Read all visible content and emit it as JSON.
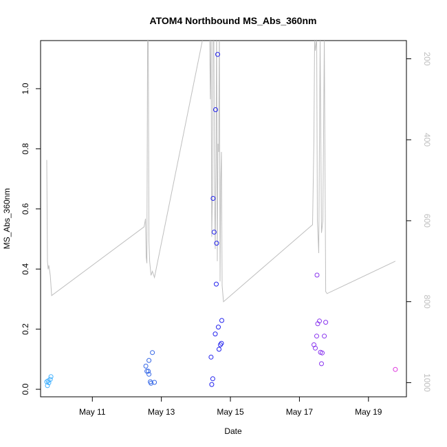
{
  "chart_data": {
    "type": "scatter",
    "title": "ATOM4 Northbound MS_Abs_360nm",
    "xlabel": "Date",
    "ylabel": "MS_Abs_360nm",
    "x_ticks": [
      "May 11",
      "May 13",
      "May 15",
      "May 17",
      "May 19"
    ],
    "x_tick_days": [
      11,
      13,
      15,
      17,
      19
    ],
    "xlim_days": [
      9.5,
      20.1
    ],
    "y_ticks": [
      0.0,
      0.2,
      0.4,
      0.6,
      0.8,
      1.0
    ],
    "y_tick_labels": [
      "0.0",
      "0.2",
      "0.4",
      "0.6",
      "0.8",
      "1.0"
    ],
    "ylim": [
      -0.025,
      1.16
    ],
    "y2_ticks": [
      200,
      400,
      600,
      800,
      1000
    ],
    "y2_tick_labels": [
      "200",
      "400",
      "600",
      "800",
      "1000"
    ],
    "y2lim_reversed": [
      1035,
      155
    ],
    "series": [
      {
        "color": "#40b0ff",
        "points": [
          {
            "day": 9.68,
            "y": 0.025
          },
          {
            "day": 9.7,
            "y": 0.012
          },
          {
            "day": 9.72,
            "y": 0.028
          },
          {
            "day": 9.74,
            "y": 0.022
          },
          {
            "day": 9.78,
            "y": 0.033
          },
          {
            "day": 9.8,
            "y": 0.042
          }
        ]
      },
      {
        "color": "#3366e6",
        "points": [
          {
            "day": 12.55,
            "y": 0.077
          },
          {
            "day": 12.58,
            "y": 0.06
          },
          {
            "day": 12.62,
            "y": 0.06
          },
          {
            "day": 12.64,
            "y": 0.05
          },
          {
            "day": 12.64,
            "y": 0.096
          },
          {
            "day": 12.68,
            "y": 0.025
          },
          {
            "day": 12.7,
            "y": 0.02
          },
          {
            "day": 12.74,
            "y": 0.122
          },
          {
            "day": 12.8,
            "y": 0.023
          }
        ]
      },
      {
        "color": "#2222ee",
        "points": [
          {
            "day": 14.44,
            "y": 0.107
          },
          {
            "day": 14.46,
            "y": 0.016
          },
          {
            "day": 14.49,
            "y": 0.035
          },
          {
            "day": 14.5,
            "y": 0.635
          },
          {
            "day": 14.53,
            "y": 0.523
          },
          {
            "day": 14.56,
            "y": 0.184
          },
          {
            "day": 14.57,
            "y": 0.93
          },
          {
            "day": 14.59,
            "y": 0.35
          },
          {
            "day": 14.6,
            "y": 0.486
          },
          {
            "day": 14.63,
            "y": 1.114
          },
          {
            "day": 14.65,
            "y": 0.207
          },
          {
            "day": 14.67,
            "y": 0.133
          },
          {
            "day": 14.71,
            "y": 0.148
          },
          {
            "day": 14.74,
            "y": 0.153
          },
          {
            "day": 14.75,
            "y": 0.229
          }
        ]
      },
      {
        "color": "#8833ee",
        "points": [
          {
            "day": 17.42,
            "y": 0.148
          },
          {
            "day": 17.46,
            "y": 0.137
          },
          {
            "day": 17.5,
            "y": 0.177
          },
          {
            "day": 17.51,
            "y": 0.38
          },
          {
            "day": 17.53,
            "y": 0.218
          },
          {
            "day": 17.58,
            "y": 0.227
          },
          {
            "day": 17.61,
            "y": 0.123
          },
          {
            "day": 17.64,
            "y": 0.085
          },
          {
            "day": 17.66,
            "y": 0.121
          },
          {
            "day": 17.72,
            "y": 0.177
          },
          {
            "day": 17.76,
            "y": 0.223
          }
        ]
      },
      {
        "color": "#dd33dd",
        "points": [
          {
            "day": 19.78,
            "y": 0.066
          }
        ]
      }
    ],
    "secondary_line": {
      "color": "#bebebe",
      "axis": "right",
      "points": [
        [
          9.68,
          450
        ],
        [
          9.7,
          700
        ],
        [
          9.72,
          720
        ],
        [
          9.74,
          710
        ],
        [
          9.78,
          735
        ],
        [
          9.82,
          785
        ],
        [
          12.5,
          615
        ],
        [
          12.54,
          595
        ],
        [
          12.56,
          690
        ],
        [
          12.58,
          705
        ],
        [
          12.6,
          150
        ],
        [
          12.62,
          150
        ],
        [
          12.64,
          650
        ],
        [
          12.66,
          700
        ],
        [
          12.7,
          735
        ],
        [
          12.74,
          725
        ],
        [
          12.8,
          740
        ],
        [
          14.2,
          150
        ],
        [
          14.25,
          150
        ],
        [
          14.3,
          150
        ],
        [
          14.4,
          150
        ],
        [
          14.42,
          300
        ],
        [
          14.44,
          100
        ],
        [
          14.46,
          640
        ],
        [
          14.48,
          540
        ],
        [
          14.5,
          100
        ],
        [
          14.52,
          120
        ],
        [
          14.54,
          530
        ],
        [
          14.56,
          670
        ],
        [
          14.58,
          450
        ],
        [
          14.6,
          100
        ],
        [
          14.62,
          700
        ],
        [
          14.64,
          410
        ],
        [
          14.66,
          430
        ],
        [
          14.68,
          100
        ],
        [
          14.7,
          750
        ],
        [
          14.72,
          500
        ],
        [
          14.74,
          430
        ],
        [
          14.76,
          760
        ],
        [
          14.8,
          800
        ],
        [
          17.38,
          610
        ],
        [
          17.42,
          400
        ],
        [
          17.44,
          150
        ],
        [
          17.46,
          180
        ],
        [
          17.5,
          150
        ],
        [
          17.52,
          600
        ],
        [
          17.56,
          680
        ],
        [
          17.6,
          150
        ],
        [
          17.64,
          630
        ],
        [
          17.68,
          600
        ],
        [
          17.72,
          150
        ],
        [
          17.76,
          775
        ],
        [
          17.8,
          780
        ],
        [
          19.78,
          700
        ]
      ]
    }
  }
}
